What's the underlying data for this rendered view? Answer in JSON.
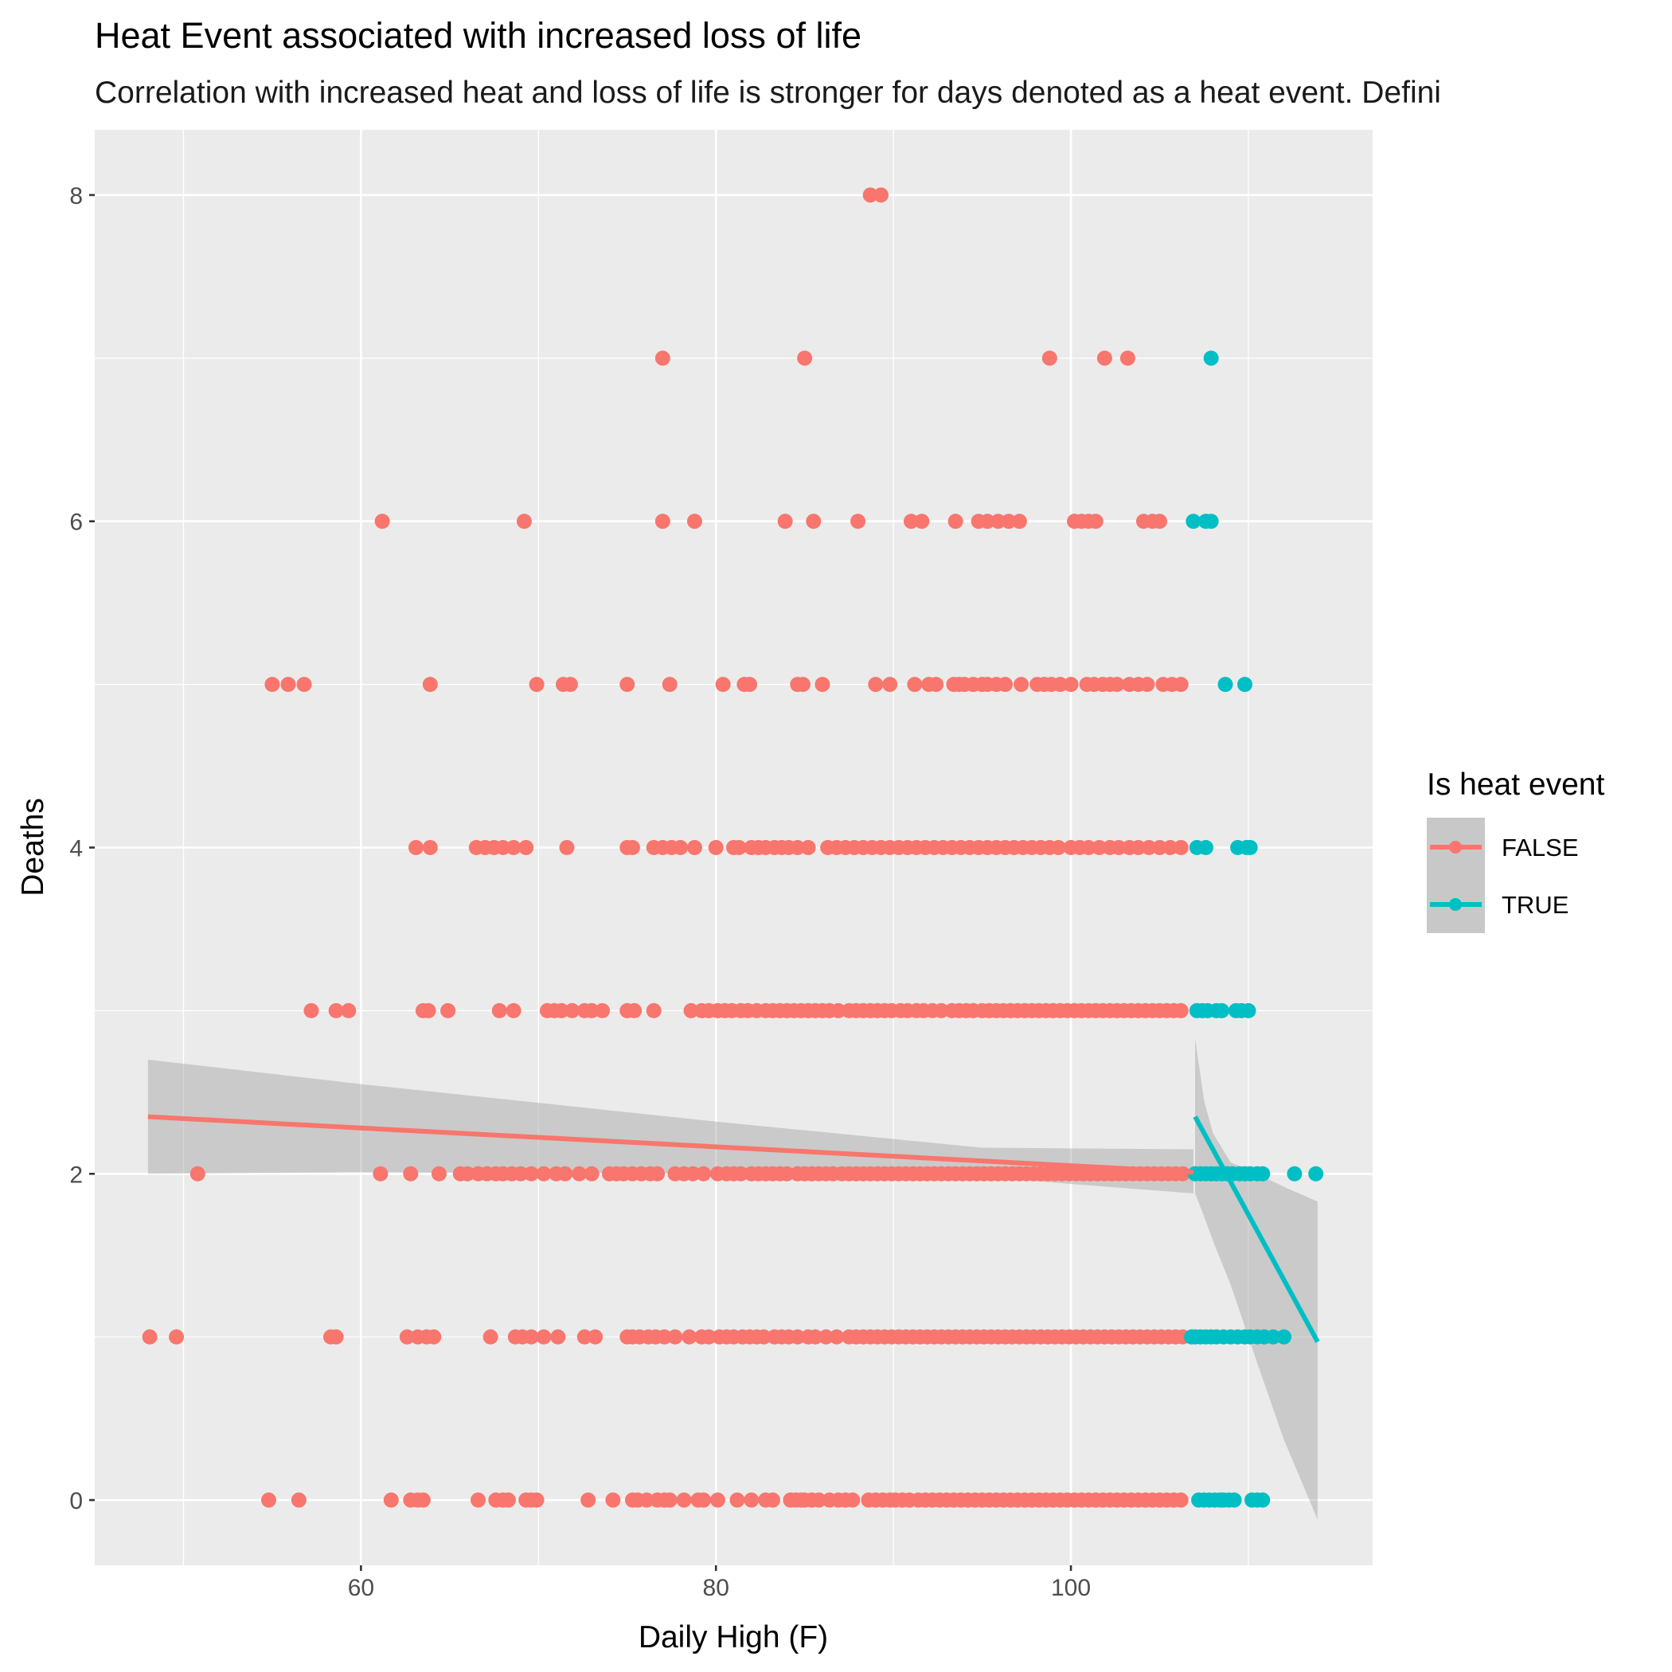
{
  "chart_data": {
    "type": "scatter",
    "title": "Heat Event associated with increased loss of life",
    "subtitle": "Correlation with increased heat and loss of life is stronger for days denoted as a heat event. Defini",
    "xlabel": "Daily High (F)",
    "ylabel": "Deaths",
    "xlim": [
      45,
      117
    ],
    "ylim": [
      -0.4,
      8.4
    ],
    "x_ticks": [
      60,
      80,
      100
    ],
    "y_ticks": [
      0,
      2,
      4,
      6,
      8
    ],
    "grid": true,
    "legend": {
      "title": "Is heat event",
      "position": "right",
      "entries": [
        "FALSE",
        "TRUE"
      ]
    },
    "colors": {
      "FALSE": "#F8766D",
      "TRUE": "#00BFC4",
      "panel": "#EBEBEB",
      "grid": "#FFFFFF",
      "ribbon": "#999999"
    },
    "series": [
      {
        "name": "FALSE",
        "fit": {
          "x": [
            48,
            106.9
          ],
          "y": [
            2.35,
            2.01
          ]
        },
        "band": {
          "x": [
            48,
            60,
            80,
            95,
            106.9
          ],
          "upper": [
            2.7,
            2.55,
            2.32,
            2.16,
            2.15
          ],
          "lower": [
            2.0,
            2.01,
            2.0,
            1.98,
            1.88
          ]
        },
        "points": [
          {
            "y": 0,
            "x": [
              54.8,
              56.5,
              61.7,
              62.8,
              63.2,
              63.5,
              66.6,
              67.6,
              68.0,
              68.3,
              69.3,
              69.6,
              69.9,
              72.8,
              74.2,
              75.3,
              75.6,
              76.1,
              76.7,
              77.1,
              77.4,
              78.2,
              79.0,
              79.3,
              80.1,
              81.2,
              82.0,
              82.8,
              83.2,
              84.2,
              84.5,
              84.8,
              85.0,
              85.4,
              85.8,
              86.4,
              86.9,
              87.3,
              87.7,
              88.6,
              89.0,
              89.4,
              89.8,
              90.1,
              90.5,
              90.9,
              91.4,
              91.8,
              92.2,
              92.6,
              93.0,
              93.4,
              93.8,
              94.2,
              94.6,
              95.0,
              95.4,
              95.8,
              96.2,
              96.6,
              97.0,
              97.4,
              97.8,
              98.2,
              98.6,
              99.0,
              99.4,
              99.8,
              100.2,
              100.6,
              101.0,
              101.4,
              101.8,
              102.2,
              102.6,
              103.0,
              103.4,
              103.8,
              104.2,
              104.6,
              105.0,
              105.4,
              105.8,
              106.2
            ]
          },
          {
            "y": 1,
            "x": [
              48.1,
              49.6,
              58.3,
              58.6,
              62.6,
              63.2,
              63.7,
              64.1,
              67.3,
              68.7,
              69.1,
              69.6,
              70.3,
              71.1,
              72.6,
              73.2,
              75.0,
              75.3,
              75.7,
              76.2,
              76.6,
              77.1,
              77.7,
              78.5,
              79.2,
              79.6,
              80.2,
              80.6,
              81.0,
              81.5,
              81.9,
              82.3,
              82.7,
              83.3,
              83.7,
              84.1,
              84.6,
              85.2,
              85.6,
              86.2,
              86.8,
              87.5,
              87.9,
              88.3,
              88.7,
              89.1,
              89.5,
              89.9,
              90.3,
              90.7,
              91.1,
              91.5,
              91.9,
              92.3,
              92.7,
              93.1,
              93.5,
              93.9,
              94.3,
              94.7,
              95.1,
              95.5,
              95.9,
              96.3,
              96.7,
              97.1,
              97.5,
              97.9,
              98.3,
              98.7,
              99.1,
              99.5,
              99.9,
              100.3,
              100.7,
              101.1,
              101.5,
              101.9,
              102.3,
              102.7,
              103.1,
              103.5,
              103.9,
              104.3,
              104.7,
              105.1,
              105.5,
              105.9,
              106.3
            ]
          },
          {
            "y": 2,
            "x": [
              50.8,
              61.1,
              62.8,
              64.4,
              65.6,
              66.0,
              66.6,
              67.1,
              67.6,
              68.0,
              68.5,
              69.0,
              69.6,
              70.3,
              71.0,
              71.5,
              72.3,
              73.0,
              74.0,
              74.4,
              74.8,
              75.3,
              75.8,
              76.3,
              76.7,
              77.7,
              78.2,
              78.7,
              79.3,
              80.1,
              80.6,
              81.0,
              81.4,
              82.0,
              82.4,
              82.8,
              83.2,
              83.6,
              84.0,
              84.6,
              85.0,
              85.4,
              85.8,
              86.2,
              86.6,
              87.1,
              87.5,
              87.9,
              88.3,
              88.7,
              89.1,
              89.5,
              89.9,
              90.3,
              90.7,
              91.1,
              91.5,
              91.9,
              92.3,
              92.7,
              93.1,
              93.5,
              93.9,
              94.3,
              94.7,
              95.1,
              95.5,
              95.9,
              96.3,
              96.7,
              97.1,
              97.5,
              97.9,
              98.3,
              98.7,
              99.1,
              99.5,
              99.9,
              100.3,
              100.7,
              101.1,
              101.5,
              101.9,
              102.3,
              102.7,
              103.1,
              103.5,
              103.9,
              104.3,
              104.7,
              105.1,
              105.5,
              105.9,
              106.3
            ]
          },
          {
            "y": 3,
            "x": [
              57.2,
              58.6,
              59.3,
              63.5,
              63.8,
              64.9,
              67.8,
              68.6,
              70.5,
              70.9,
              71.3,
              71.9,
              72.6,
              73.0,
              73.6,
              75.0,
              75.4,
              76.5,
              78.6,
              79.2,
              79.6,
              80.1,
              80.5,
              80.9,
              81.4,
              81.8,
              82.3,
              82.8,
              83.2,
              83.6,
              84.0,
              84.4,
              84.8,
              85.2,
              85.6,
              86.0,
              86.4,
              86.9,
              87.5,
              87.9,
              88.3,
              88.7,
              89.1,
              89.5,
              89.9,
              90.4,
              90.8,
              91.3,
              91.7,
              92.2,
              92.7,
              93.3,
              93.7,
              94.1,
              94.5,
              95.0,
              95.4,
              95.8,
              96.2,
              96.6,
              97.0,
              97.4,
              97.8,
              98.2,
              98.6,
              99.0,
              99.4,
              99.8,
              100.2,
              100.6,
              101.0,
              101.4,
              101.8,
              102.2,
              102.6,
              103.0,
              103.4,
              103.8,
              104.2,
              104.6,
              105.0,
              105.4,
              105.8,
              106.2
            ]
          },
          {
            "y": 4,
            "x": [
              63.1,
              63.9,
              66.5,
              67.0,
              67.5,
              68.0,
              68.6,
              69.3,
              71.6,
              75.0,
              75.3,
              76.5,
              77.0,
              77.5,
              78.0,
              78.8,
              80.0,
              81.0,
              81.3,
              82.0,
              82.4,
              82.8,
              83.3,
              83.7,
              84.1,
              84.6,
              85.2,
              86.3,
              86.8,
              87.3,
              87.8,
              88.3,
              88.8,
              89.3,
              89.8,
              90.3,
              90.8,
              91.3,
              91.8,
              92.3,
              92.8,
              93.3,
              93.8,
              94.3,
              94.8,
              95.3,
              95.8,
              96.3,
              96.8,
              97.3,
              97.8,
              98.3,
              98.8,
              99.3,
              100.0,
              100.5,
              101.0,
              101.6,
              102.2,
              102.7,
              103.3,
              103.8,
              104.4,
              105.0,
              105.6,
              106.2
            ]
          },
          {
            "y": 5,
            "x": [
              55.0,
              55.9,
              56.8,
              63.9,
              69.9,
              71.4,
              71.8,
              75.0,
              77.4,
              80.4,
              81.6,
              81.9,
              84.6,
              84.9,
              86.0,
              89.0,
              89.8,
              91.2,
              92.0,
              92.4,
              93.4,
              93.7,
              94.0,
              94.5,
              95.0,
              95.3,
              95.8,
              96.3,
              97.2,
              98.1,
              98.5,
              98.9,
              99.4,
              100.0,
              100.9,
              101.3,
              101.8,
              102.2,
              102.6,
              103.3,
              103.8,
              104.3,
              105.2,
              105.7,
              106.2
            ]
          },
          {
            "y": 6,
            "x": [
              61.2,
              69.2,
              77.0,
              78.8,
              83.9,
              85.5,
              88.0,
              91.0,
              91.6,
              93.5,
              94.8,
              95.3,
              95.9,
              96.5,
              97.1,
              100.2,
              100.6,
              101.0,
              101.4,
              104.1,
              104.6,
              105.0
            ]
          },
          {
            "y": 7,
            "x": [
              77.0,
              85.0,
              98.8,
              101.9,
              103.2
            ]
          },
          {
            "y": 8,
            "x": [
              88.7,
              89.3
            ]
          }
        ]
      },
      {
        "name": "TRUE",
        "fit": {
          "x": [
            107.0,
            113.9
          ],
          "y": [
            2.35,
            0.97
          ]
        },
        "band": {
          "x": [
            107.0,
            107.5,
            108.0,
            109.0,
            110.5,
            112.0,
            113.9
          ],
          "upper": [
            2.83,
            2.45,
            2.25,
            2.07,
            2.0,
            1.92,
            1.83
          ],
          "lower": [
            1.88,
            1.74,
            1.59,
            1.32,
            0.84,
            0.37,
            -0.12
          ]
        },
        "points": [
          {
            "y": 0,
            "x": [
              107.2,
              107.5,
              107.8,
              108.1,
              108.4,
              108.6,
              108.9,
              109.2,
              110.2,
              110.5,
              110.8
            ]
          },
          {
            "y": 1,
            "x": [
              106.8,
              107.0,
              107.3,
              107.6,
              107.9,
              108.2,
              108.6,
              109.0,
              109.4,
              109.8,
              110.1,
              110.5,
              110.9,
              111.4,
              112.0
            ]
          },
          {
            "y": 2,
            "x": [
              107.0,
              107.3,
              107.6,
              107.9,
              108.2,
              108.5,
              108.8,
              109.1,
              109.5,
              109.8,
              110.1,
              110.5,
              110.8,
              112.6,
              113.8
            ]
          },
          {
            "y": 3,
            "x": [
              107.1,
              107.4,
              107.7,
              108.2,
              108.5,
              109.3,
              109.6,
              110.0
            ]
          },
          {
            "y": 4,
            "x": [
              107.1,
              107.6,
              109.4,
              109.9,
              110.1
            ]
          },
          {
            "y": 5,
            "x": [
              108.7,
              109.8
            ]
          },
          {
            "y": 6,
            "x": [
              106.9,
              107.6,
              107.9
            ]
          },
          {
            "y": 7,
            "x": [
              107.9
            ]
          }
        ]
      }
    ]
  }
}
